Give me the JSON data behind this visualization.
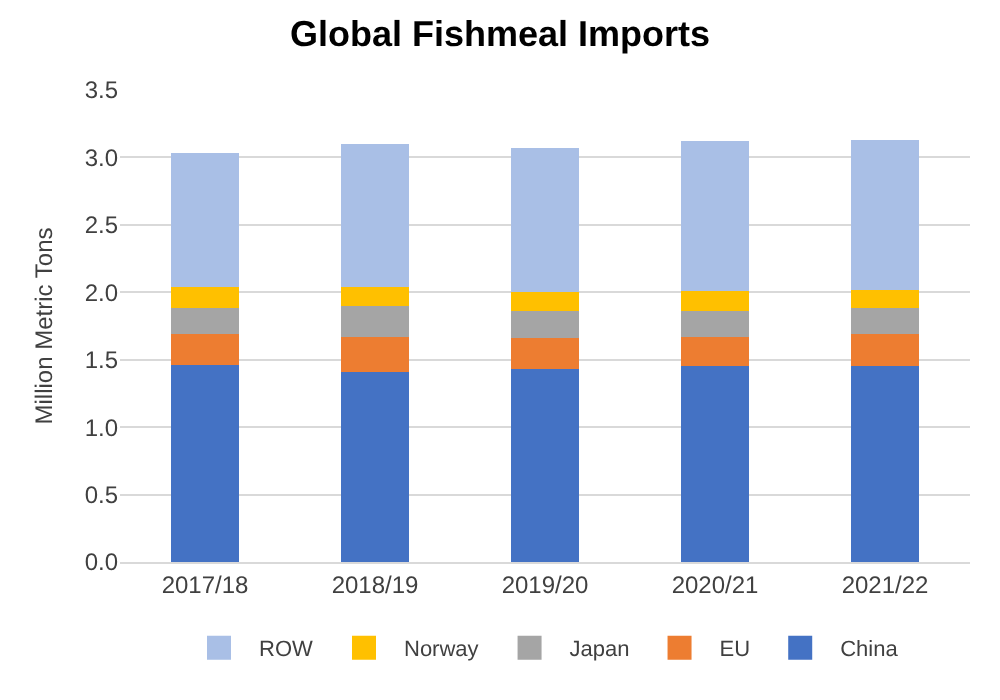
{
  "chart_data": {
    "type": "bar",
    "title": "Global Fishmeal Imports",
    "ylabel": "Million Metric Tons",
    "stacked": true,
    "categories": [
      "2017/18",
      "2018/19",
      "2019/20",
      "2020/21",
      "2021/22"
    ],
    "series": [
      {
        "name": "China",
        "color": "#4472c4",
        "values": [
          1.46,
          1.41,
          1.43,
          1.45,
          1.45
        ]
      },
      {
        "name": "EU",
        "color": "#ed7d31",
        "values": [
          0.23,
          0.26,
          0.23,
          0.22,
          0.24
        ]
      },
      {
        "name": "Japan",
        "color": "#a5a5a5",
        "values": [
          0.19,
          0.23,
          0.2,
          0.19,
          0.19
        ]
      },
      {
        "name": "Norway",
        "color": "#ffc000",
        "values": [
          0.16,
          0.14,
          0.14,
          0.15,
          0.14
        ]
      },
      {
        "name": "ROW",
        "color": "#a9bfe6",
        "values": [
          0.99,
          1.06,
          1.07,
          1.11,
          1.11
        ]
      }
    ],
    "ylim": [
      0,
      3.5
    ],
    "yticks": [
      "0.0",
      0.5,
      "1.0",
      1.5,
      "2.0",
      2.5,
      "3.0",
      3.5
    ],
    "grid": "y",
    "legend": "bottom"
  }
}
